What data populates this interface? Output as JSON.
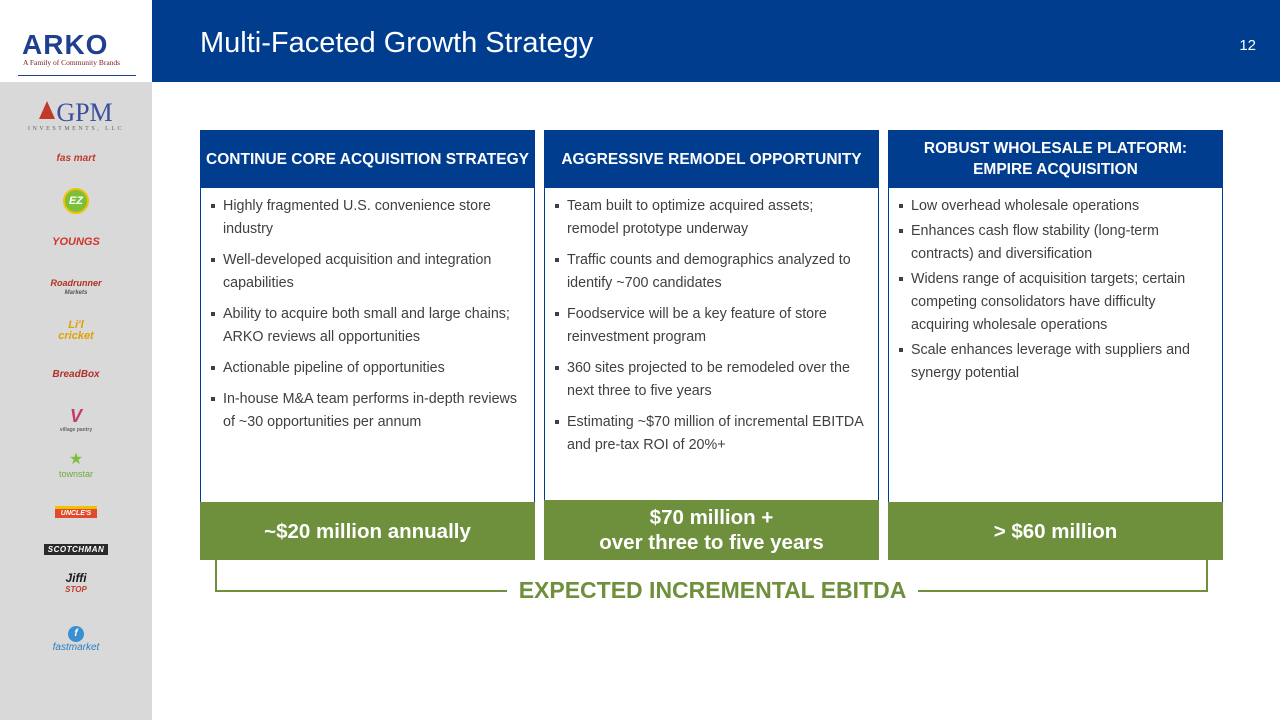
{
  "sidebar": {
    "logo": {
      "name": "ARKO",
      "tagline": "A Family of Community Brands"
    },
    "brands": {
      "gpm": {
        "name": "GPM",
        "sub": "INVESTMENTS, LLC"
      },
      "fasmart": "fas mart",
      "ez": "EZ",
      "youngs": "YOUNGS",
      "roadrunner": {
        "name": "Roadrunner",
        "sub": "Markets"
      },
      "lilcricket": {
        "line1": "Li'l",
        "line2": "cricket"
      },
      "breadbox": "BreadBox",
      "village": {
        "mark": "V",
        "sub": "village pantry"
      },
      "townstar": "townstar",
      "uncle": "UNCLE'S",
      "scotchman": "SCOTCHMAN",
      "jiffi": {
        "name": "Jiffi",
        "sub": "STOP"
      },
      "fastmarket": {
        "mark": "f",
        "name": "fastmarket"
      }
    }
  },
  "header": {
    "title": "Multi-Faceted Growth Strategy",
    "page_number": "12"
  },
  "columns": [
    {
      "title": "CONTINUE CORE ACQUISITION STRATEGY",
      "bullets": [
        "Highly fragmented U.S. convenience store industry",
        "Well-developed acquisition and integration capabilities",
        "Ability to acquire both small and large chains; ARKO reviews all opportunities",
        "Actionable pipeline of opportunities",
        "In-house M&A team performs in-depth reviews of ~30 opportunities per annum"
      ],
      "footer": "~$20 million annually"
    },
    {
      "title": "AGGRESSIVE REMODEL OPPORTUNITY",
      "bullets": [
        "Team built to optimize acquired assets; remodel prototype underway",
        "Traffic counts and demographics analyzed to identify ~700 candidates",
        "Foodservice will be a key feature of store reinvestment program",
        "360 sites projected to be remodeled over the next three to five years",
        "Estimating ~$70 million of incremental EBITDA and pre-tax ROI of 20%+"
      ],
      "footer": "$70 million +\nover three to five years"
    },
    {
      "title": "ROBUST WHOLESALE PLATFORM:\nEMPIRE ACQUISITION",
      "bullets": [
        "Low overhead wholesale operations",
        "Enhances cash flow stability (long-term contracts) and diversification",
        "Widens range of acquisition targets; certain competing consolidators have difficulty acquiring wholesale operations",
        "Scale enhances leverage with suppliers and synergy potential"
      ],
      "footer": "> $60 million"
    }
  ],
  "bracket_label": "EXPECTED INCREMENTAL EBITDA",
  "colors": {
    "navy": "#003d8f",
    "green": "#6e8f3c",
    "sidebar_gray": "#d9d9d9"
  }
}
